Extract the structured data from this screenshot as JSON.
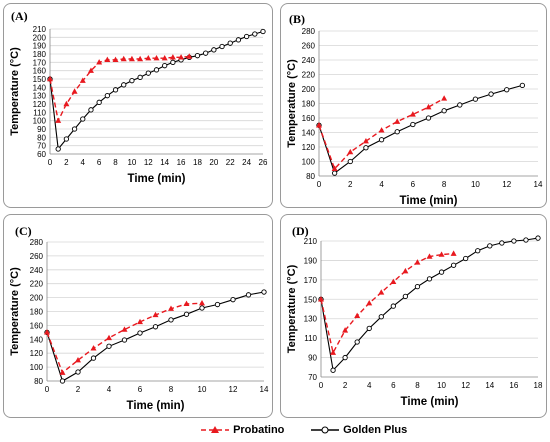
{
  "legend": {
    "s1": "Probatino",
    "s2": "Golden Plus"
  },
  "colors": {
    "s1": "#e8191f",
    "s2": "#000000",
    "grid": "#d6d6d6"
  },
  "chart_data": [
    {
      "id": "A",
      "panel_label": "(A)",
      "type": "line",
      "xlabel": "Time (min)",
      "ylabel": "Temperature (°C)",
      "xlim": [
        0,
        26
      ],
      "ylim": [
        60,
        210
      ],
      "xticks": [
        0,
        2,
        4,
        6,
        8,
        10,
        12,
        14,
        16,
        18,
        20,
        22,
        24,
        26
      ],
      "yticks": [
        60,
        70,
        80,
        90,
        100,
        110,
        120,
        130,
        140,
        150,
        160,
        170,
        180,
        190,
        200,
        210
      ],
      "grid": "horizontal",
      "series": [
        {
          "name": "Probatino",
          "style": "dashed-triangle",
          "x": [
            0,
            1,
            2,
            3,
            4,
            5,
            6,
            7,
            8,
            9,
            10,
            11,
            12,
            13,
            14,
            15,
            16,
            17
          ],
          "y": [
            150,
            100,
            120,
            135,
            148,
            160,
            170,
            173,
            173,
            174,
            174,
            174,
            175,
            175,
            175,
            176,
            176,
            177
          ]
        },
        {
          "name": "Golden Plus",
          "style": "solid-circle",
          "x": [
            0,
            1,
            2,
            3,
            4,
            5,
            6,
            7,
            8,
            9,
            10,
            11,
            12,
            13,
            14,
            15,
            16,
            17,
            18,
            19,
            20,
            21,
            22,
            23,
            24,
            25,
            26
          ],
          "y": [
            150,
            66,
            78,
            90,
            102,
            113,
            122,
            130,
            137,
            143,
            148,
            152,
            157,
            161,
            166,
            170,
            173,
            176,
            178,
            181,
            185,
            189,
            193,
            197,
            201,
            204,
            207
          ]
        }
      ]
    },
    {
      "id": "B",
      "panel_label": "(B)",
      "type": "line",
      "xlabel": "Time (min)",
      "ylabel": "Temperature (°C)",
      "xlim": [
        0,
        14
      ],
      "ylim": [
        80,
        280
      ],
      "xticks": [
        0,
        2,
        4,
        6,
        8,
        10,
        12,
        14
      ],
      "yticks": [
        80,
        100,
        120,
        140,
        160,
        180,
        200,
        220,
        240,
        260,
        280
      ],
      "grid": "horizontal",
      "series": [
        {
          "name": "Probatino",
          "style": "dashed-triangle",
          "x": [
            0,
            1,
            2,
            3,
            4,
            5,
            6,
            7,
            8
          ],
          "y": [
            150,
            90,
            113,
            128,
            143,
            155,
            165,
            175,
            187
          ]
        },
        {
          "name": "Golden Plus",
          "style": "solid-circle",
          "x": [
            0,
            1,
            2,
            3,
            4,
            5,
            6,
            7,
            8,
            9,
            10,
            11,
            12,
            13
          ],
          "y": [
            150,
            84,
            100,
            119,
            130,
            141,
            151,
            160,
            170,
            178,
            186,
            193,
            199,
            205
          ]
        }
      ]
    },
    {
      "id": "C",
      "panel_label": "(C)",
      "type": "line",
      "xlabel": "Time (min)",
      "ylabel": "Temperature (°C)",
      "xlim": [
        0,
        14
      ],
      "ylim": [
        80,
        280
      ],
      "xticks": [
        0,
        2,
        4,
        6,
        8,
        10,
        12,
        14
      ],
      "yticks": [
        80,
        100,
        120,
        140,
        160,
        180,
        200,
        220,
        240,
        260,
        280
      ],
      "grid": "horizontal",
      "series": [
        {
          "name": "Probatino",
          "style": "dashed-triangle",
          "x": [
            0,
            1,
            2,
            3,
            4,
            5,
            6,
            7,
            8,
            9,
            10
          ],
          "y": [
            150,
            92,
            110,
            127,
            142,
            154,
            165,
            175,
            184,
            191,
            192
          ]
        },
        {
          "name": "Golden Plus",
          "style": "solid-circle",
          "x": [
            0,
            1,
            2,
            3,
            4,
            5,
            6,
            7,
            8,
            9,
            10,
            11,
            12,
            13,
            14
          ],
          "y": [
            150,
            80,
            93,
            113,
            130,
            139,
            149,
            158,
            168,
            176,
            185,
            190,
            197,
            204,
            208
          ]
        }
      ]
    },
    {
      "id": "D",
      "panel_label": "(D)",
      "type": "line",
      "xlabel": "Time (min)",
      "ylabel": "Temperature (°C)",
      "xlim": [
        0,
        18
      ],
      "ylim": [
        70,
        210
      ],
      "xticks": [
        0,
        2,
        4,
        6,
        8,
        10,
        12,
        14,
        16,
        18
      ],
      "yticks": [
        70,
        90,
        110,
        130,
        150,
        170,
        190,
        210
      ],
      "grid": "horizontal",
      "series": [
        {
          "name": "Probatino",
          "style": "dashed-triangle",
          "x": [
            0,
            1,
            2,
            3,
            4,
            5,
            6,
            7,
            8,
            9,
            10,
            11
          ],
          "y": [
            150,
            95,
            118,
            133,
            146,
            157,
            168,
            179,
            188,
            194,
            196,
            197
          ]
        },
        {
          "name": "Golden Plus",
          "style": "solid-circle",
          "x": [
            0,
            1,
            2,
            3,
            4,
            5,
            6,
            7,
            8,
            9,
            10,
            11,
            12,
            13,
            14,
            15,
            16,
            17,
            18
          ],
          "y": [
            150,
            77,
            90,
            106,
            120,
            132,
            143,
            153,
            163,
            171,
            178,
            185,
            192,
            200,
            205,
            208,
            210,
            211,
            213
          ]
        }
      ]
    }
  ]
}
